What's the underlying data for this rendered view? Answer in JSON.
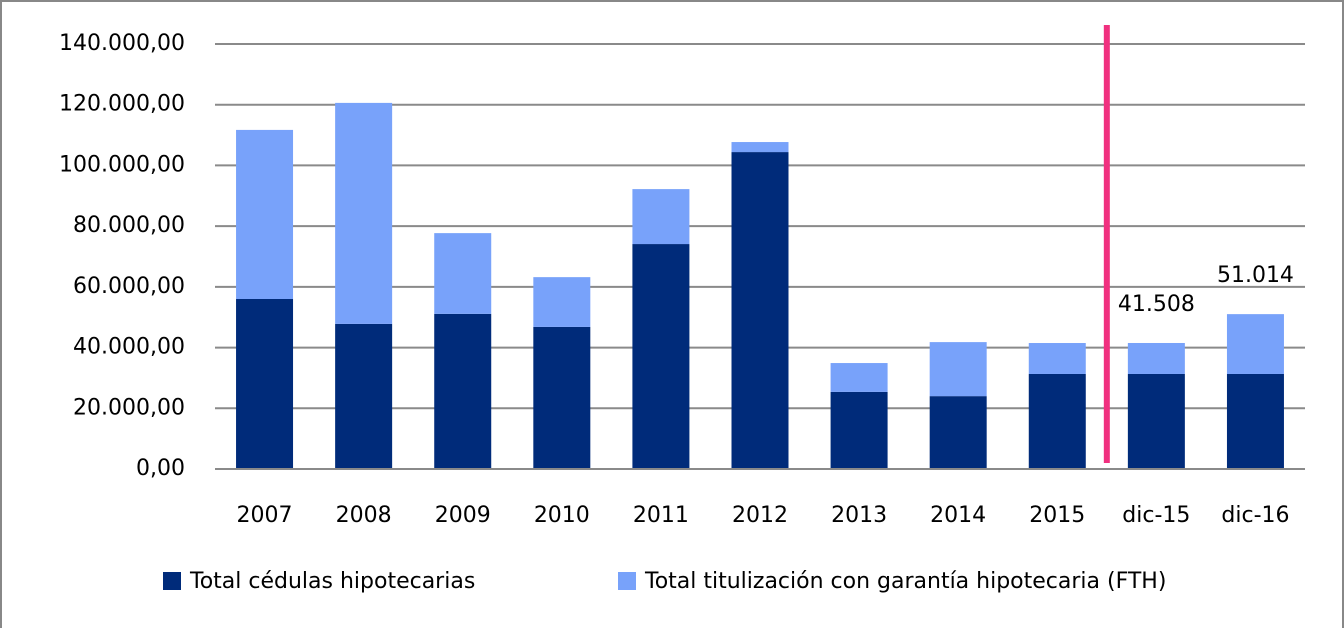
{
  "chart_data": {
    "type": "stacked_bar",
    "categories": [
      "2007",
      "2008",
      "2009",
      "2010",
      "2011",
      "2012",
      "2013",
      "2014",
      "2015",
      "dic-15",
      "dic-16"
    ],
    "series": [
      {
        "name": "Total cédulas hipotecarias",
        "color": "#002b7a",
        "values": [
          56000,
          47800,
          51100,
          46800,
          74100,
          104400,
          25400,
          24000,
          31300,
          31300,
          31300
        ]
      },
      {
        "name": "Total titulización con garantía hipotecaria (FTH)",
        "color": "#78a2fa",
        "values": [
          55700,
          72800,
          26600,
          16400,
          18100,
          3300,
          9500,
          17800,
          10200,
          10208,
          19714
        ]
      }
    ],
    "ylim": [
      0,
      140000
    ],
    "yticks": [
      {
        "value": 0,
        "label": "0,00"
      },
      {
        "value": 20000,
        "label": "20.000,00"
      },
      {
        "value": 40000,
        "label": "40.000,00"
      },
      {
        "value": 60000,
        "label": "60.000,00"
      },
      {
        "value": 80000,
        "label": "80.000,00"
      },
      {
        "value": 100000,
        "label": "100.000,00"
      },
      {
        "value": 120000,
        "label": "120.000,00"
      },
      {
        "value": 140000,
        "label": "140.000,00"
      }
    ],
    "grid": true,
    "legend": "bottom",
    "annotations": [
      {
        "x": "dic-15",
        "value": 41508,
        "label": "41.508"
      },
      {
        "x": "dic-16",
        "value": 51014,
        "label": "51.014"
      }
    ],
    "divider_after": "2015",
    "divider_color": "#f0307f"
  }
}
